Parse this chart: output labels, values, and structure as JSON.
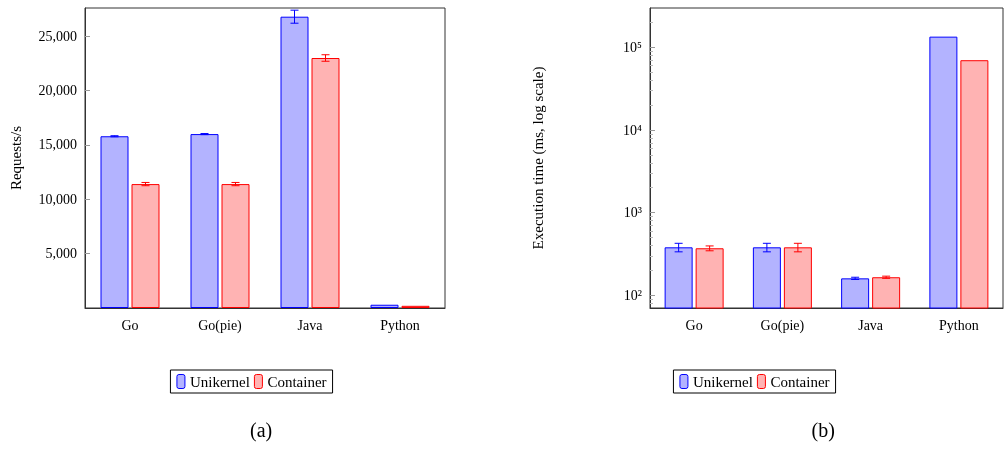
{
  "chart_data": [
    {
      "type": "bar",
      "title": "(a)",
      "ylabel": "Requests/s",
      "categories": [
        "Go",
        "Go(pie)",
        "Java",
        "Python"
      ],
      "series": [
        {
          "name": "Unikernel",
          "color": "#b3b3ff",
          "values": [
            15800,
            16000,
            26800,
            300
          ],
          "errors": [
            50,
            50,
            600,
            null
          ]
        },
        {
          "name": "Container",
          "color": "#ffb3b3",
          "values": [
            11400,
            11400,
            23000,
            200
          ],
          "errors": [
            150,
            150,
            300,
            null
          ]
        }
      ],
      "ylim": [
        0,
        27600
      ],
      "yticks": [
        {
          "value": 5000,
          "label": "5,000"
        },
        {
          "value": 10000,
          "label": "10,000"
        },
        {
          "value": 15000,
          "label": "15,000"
        },
        {
          "value": 20000,
          "label": "20,000"
        },
        {
          "value": 25000,
          "label": "25,000"
        }
      ],
      "grid": false,
      "legend": "bottom"
    },
    {
      "type": "bar",
      "title": "(b)",
      "ylabel": "Execution time (ms, log scale)",
      "categories": [
        "Go",
        "Go(pie)",
        "Java",
        "Python"
      ],
      "series": [
        {
          "name": "Unikernel",
          "color": "#b3b3ff",
          "values": [
            380,
            380,
            160,
            135000
          ],
          "errors": [
            45,
            45,
            5,
            null
          ]
        },
        {
          "name": "Container",
          "color": "#ffb3b3",
          "values": [
            370,
            380,
            165,
            70000
          ],
          "errors": [
            25,
            45,
            5,
            null
          ]
        }
      ],
      "log": "y",
      "ylim": [
        70,
        300000
      ],
      "yticks": [
        {
          "value": 100,
          "label": "10²"
        },
        {
          "value": 1000,
          "label": "10³"
        },
        {
          "value": 10000,
          "label": "10⁴"
        },
        {
          "value": 100000,
          "label": "10⁵"
        }
      ],
      "grid": false,
      "legend": "bottom"
    }
  ]
}
